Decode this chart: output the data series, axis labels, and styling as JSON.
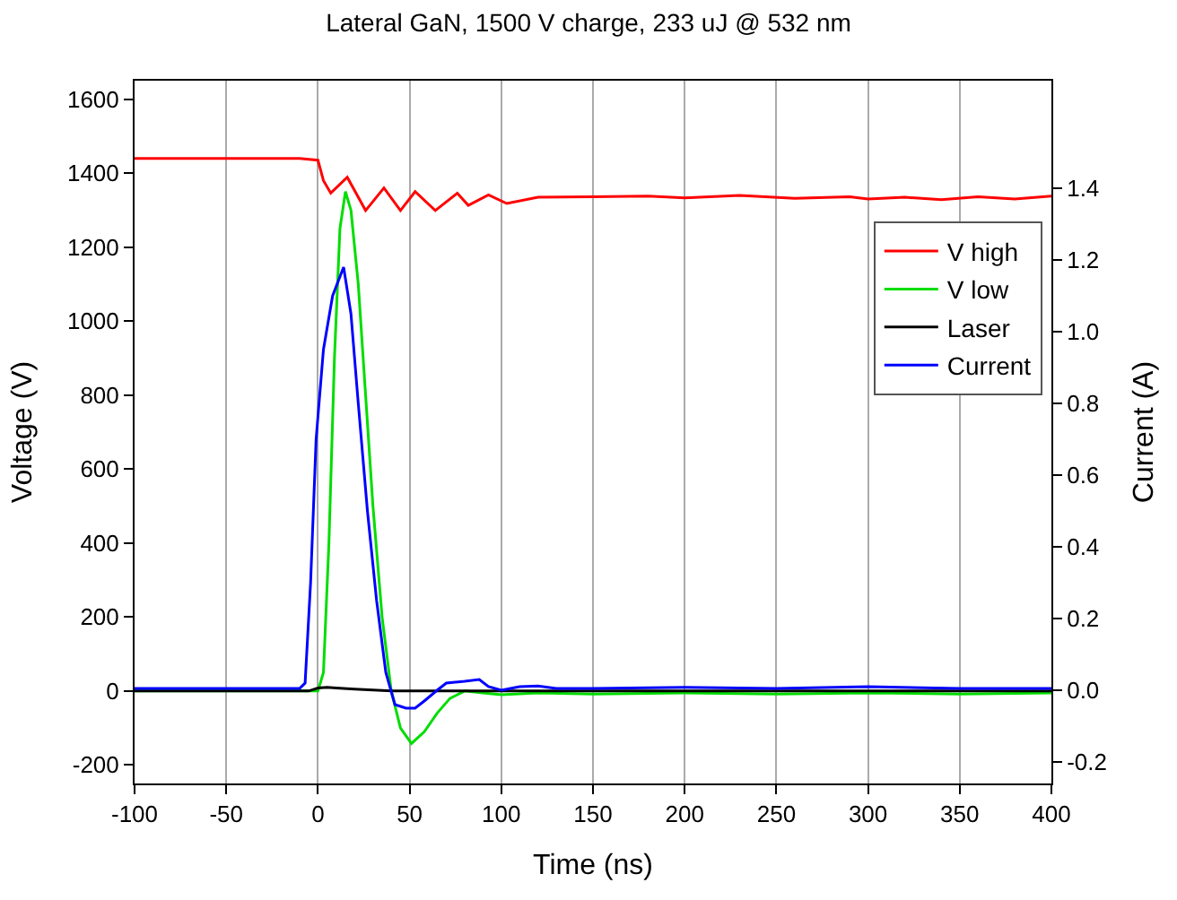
{
  "chart_data": {
    "type": "line",
    "title": "Lateral GaN, 1500 V charge, 233 uJ @ 532 nm",
    "xlabel": "Time (ns)",
    "ylabel": "Voltage (V)",
    "y2label": "Current (A)",
    "xlim": [
      -100,
      400
    ],
    "xticks": [
      -100,
      -50,
      0,
      50,
      100,
      150,
      200,
      250,
      300,
      350,
      400
    ],
    "ylim": [
      -250,
      1650
    ],
    "yticks": [
      -200,
      0,
      200,
      400,
      600,
      800,
      1000,
      1200,
      1400,
      1600
    ],
    "y2lim": [
      -0.26,
      1.7
    ],
    "y2ticks": [
      -0.2,
      {
        "value": 0,
        "label": "0.0"
      },
      0.2,
      0.4,
      0.6,
      0.8,
      {
        "value": 1,
        "label": "1.0"
      },
      1.2,
      1.4
    ],
    "grid": "x",
    "legend": "top right",
    "line_style": "solid",
    "marker": "none",
    "series": [
      {
        "name": "V high",
        "color": "#ff0000",
        "x": [
          -100,
          -50,
          -10,
          0,
          3,
          7,
          16,
          26,
          36,
          45,
          53,
          64,
          76,
          82,
          93,
          103,
          120,
          150,
          180,
          200,
          230,
          260,
          290,
          300,
          320,
          340,
          360,
          380,
          400
        ],
        "values": [
          1440,
          1440,
          1440,
          1435,
          1380,
          1346,
          1389,
          1299,
          1360,
          1299,
          1350,
          1299,
          1346,
          1313,
          1341,
          1318,
          1335,
          1336,
          1338,
          1333,
          1340,
          1332,
          1336,
          1330,
          1335,
          1328,
          1336,
          1330,
          1338
        ]
      },
      {
        "name": "V low",
        "color": "#00dd00",
        "x": [
          -100,
          -50,
          0,
          3,
          6,
          9,
          12,
          15,
          18,
          22,
          26,
          30,
          35,
          40,
          45,
          51,
          58,
          65,
          72,
          80,
          90,
          100,
          120,
          150,
          200,
          250,
          300,
          350,
          400
        ],
        "values": [
          0,
          0,
          0,
          50,
          400,
          900,
          1250,
          1350,
          1300,
          1100,
          800,
          500,
          200,
          0,
          -100,
          -142,
          -110,
          -60,
          -20,
          0,
          -5,
          -10,
          -5,
          -8,
          -5,
          -8,
          -5,
          -8,
          -5
        ]
      },
      {
        "name": "Laser",
        "color": "#000000",
        "x": [
          -100,
          -50,
          -5,
          0,
          5,
          10,
          20,
          40,
          100,
          200,
          300,
          400
        ],
        "values": [
          0,
          0,
          0,
          8,
          10,
          8,
          5,
          0,
          0,
          0,
          0,
          0
        ]
      },
      {
        "name": "Current",
        "color": "#0000ff",
        "axis": "y2",
        "x": [
          -100,
          -50,
          -10,
          -7,
          -4,
          -1,
          3,
          8,
          14,
          18,
          22,
          27,
          32,
          37,
          42,
          48,
          53,
          58,
          65,
          70,
          80,
          88,
          93,
          100,
          110,
          120,
          130,
          150,
          200,
          250,
          300,
          350,
          400
        ],
        "values": [
          0.005,
          0.005,
          0.005,
          0.02,
          0.3,
          0.7,
          0.95,
          1.1,
          1.18,
          1.05,
          0.8,
          0.5,
          0.25,
          0.05,
          -0.04,
          -0.05,
          -0.05,
          -0.03,
          0.0,
          0.02,
          0.025,
          0.03,
          0.01,
          0.0,
          0.01,
          0.012,
          0.005,
          0.005,
          0.008,
          0.005,
          0.01,
          0.005,
          0.005
        ]
      }
    ]
  }
}
